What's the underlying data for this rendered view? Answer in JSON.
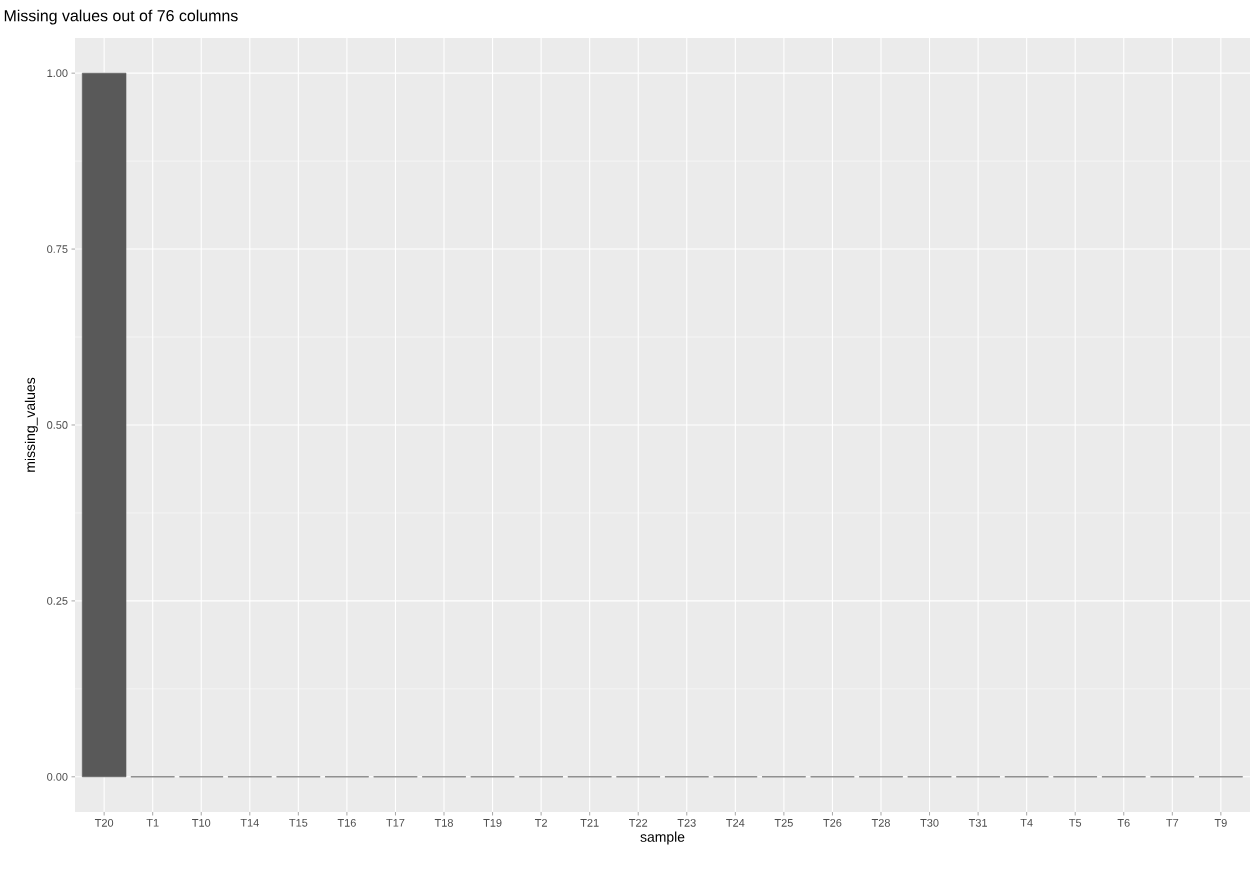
{
  "chart_data": {
    "type": "bar",
    "title": "Missing values out of 76 columns",
    "xlabel": "sample",
    "ylabel": "missing_values",
    "categories": [
      "T20",
      "T1",
      "T10",
      "T14",
      "T15",
      "T16",
      "T17",
      "T18",
      "T19",
      "T2",
      "T21",
      "T22",
      "T23",
      "T24",
      "T25",
      "T26",
      "T28",
      "T30",
      "T31",
      "T4",
      "T5",
      "T6",
      "T7",
      "T9"
    ],
    "values": [
      1,
      0,
      0,
      0,
      0,
      0,
      0,
      0,
      0,
      0,
      0,
      0,
      0,
      0,
      0,
      0,
      0,
      0,
      0,
      0,
      0,
      0,
      0,
      0
    ],
    "color": "#595959",
    "ylim": [
      -0.05,
      1.05
    ],
    "yticks": [
      {
        "value": 0,
        "label": "0.00"
      },
      {
        "value": 0.25,
        "label": "0.25"
      },
      {
        "value": 0.5,
        "label": "0.50"
      },
      {
        "value": 0.75,
        "label": "0.75"
      },
      {
        "value": 1,
        "label": "1.00"
      }
    ],
    "grid": true
  }
}
